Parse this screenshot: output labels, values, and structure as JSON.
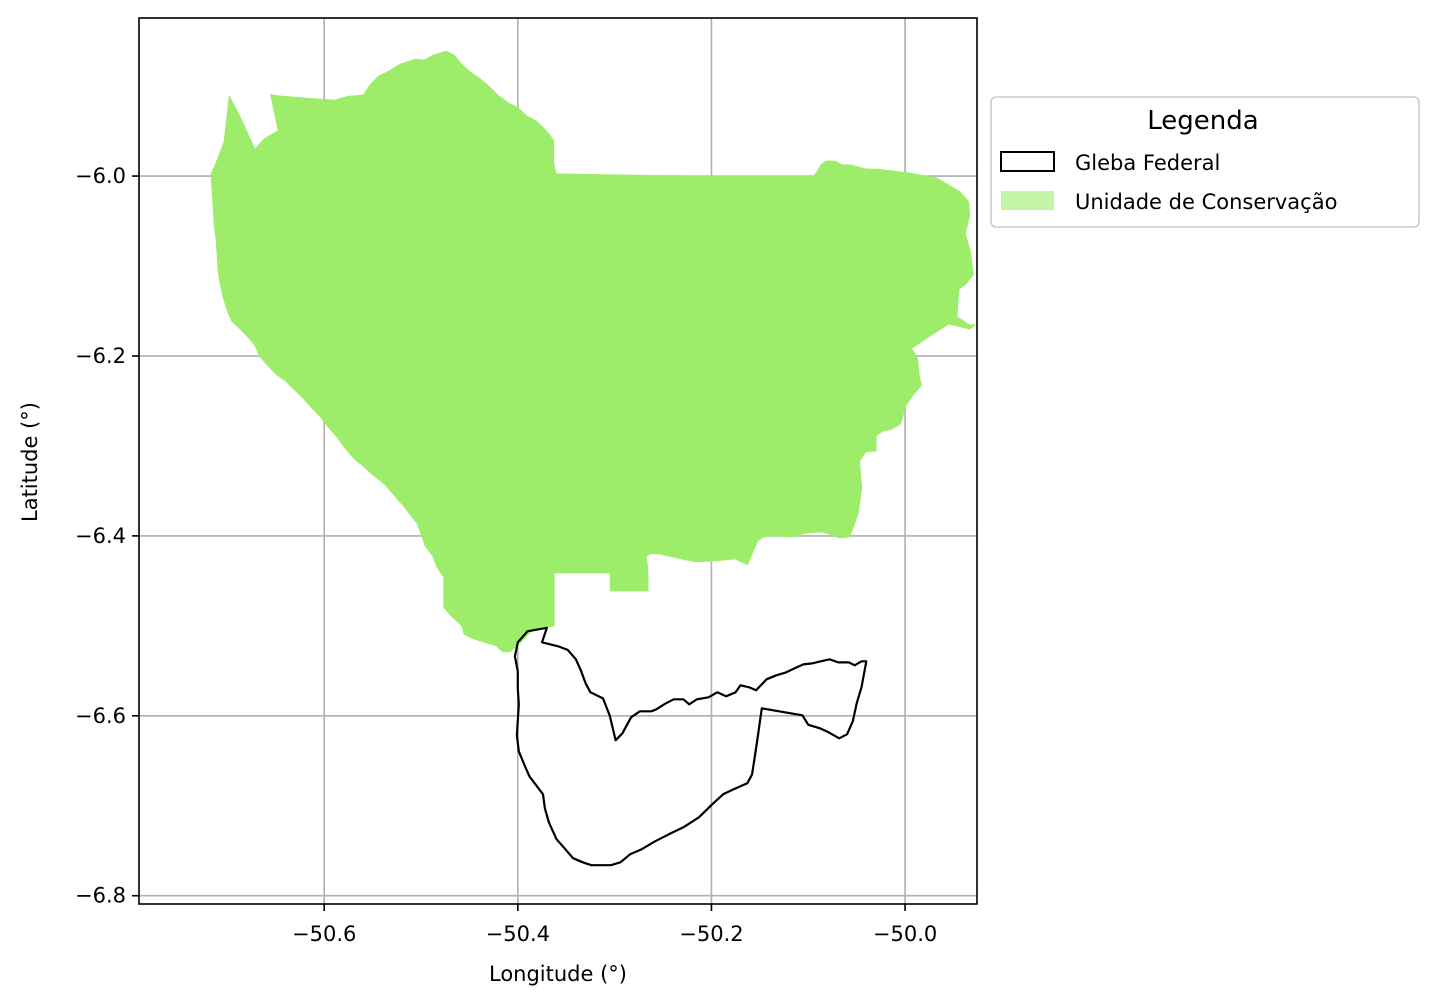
{
  "chart_data": {
    "type": "map",
    "xlabel": "Longitude (°)",
    "ylabel": "Latitude (°)",
    "xlim": [
      -50.7913,
      -49.9257
    ],
    "ylim": [
      -6.8092,
      -5.8243
    ],
    "x_ticks": [
      -50.6,
      -50.4,
      -50.2,
      -50.0
    ],
    "x_tick_labels": [
      "−50.6",
      "−50.4",
      "−50.2",
      "−50.0"
    ],
    "y_ticks": [
      -6.0,
      -6.2,
      -6.4,
      -6.6,
      -6.8
    ],
    "y_tick_labels": [
      "−6.0",
      "−6.2",
      "−6.4",
      "−6.6",
      "−6.8"
    ],
    "grid": true,
    "legend": {
      "title": "Legenda",
      "placement": "outside-right-top",
      "entries": [
        {
          "label": "Gleba Federal",
          "style": "outline",
          "color": "#000000"
        },
        {
          "label": "Unidade de Conservação",
          "style": "fill",
          "color": "#9ded6a"
        }
      ]
    },
    "layers": [
      {
        "name": "Unidade de Conservação",
        "fill": "#9ded6a",
        "polygon": [
          [
            -50.7173,
            -5.9975
          ],
          [
            -50.7128,
            -5.9872
          ],
          [
            -50.7038,
            -5.9617
          ],
          [
            -50.6983,
            -5.9095
          ],
          [
            -50.6874,
            -5.9317
          ],
          [
            -50.6714,
            -5.9694
          ],
          [
            -50.6624,
            -5.9584
          ],
          [
            -50.648,
            -5.9494
          ],
          [
            -50.656,
            -5.9084
          ],
          [
            -50.647,
            -5.9105
          ],
          [
            -50.6196,
            -5.9128
          ],
          [
            -50.5891,
            -5.915
          ],
          [
            -50.5755,
            -5.9109
          ],
          [
            -50.5597,
            -5.9095
          ],
          [
            -50.5531,
            -5.8984
          ],
          [
            -50.5441,
            -5.8884
          ],
          [
            -50.5351,
            -5.8839
          ],
          [
            -50.5216,
            -5.8751
          ],
          [
            -50.5061,
            -5.8695
          ],
          [
            -50.497,
            -5.8706
          ],
          [
            -50.4877,
            -5.8651
          ],
          [
            -50.474,
            -5.8606
          ],
          [
            -50.4656,
            -5.865
          ],
          [
            -50.458,
            -5.875
          ],
          [
            -50.449,
            -5.8839
          ],
          [
            -50.4399,
            -5.8906
          ],
          [
            -50.4309,
            -5.8983
          ],
          [
            -50.4194,
            -5.9105
          ],
          [
            -50.4094,
            -5.9183
          ],
          [
            -50.3994,
            -5.9239
          ],
          [
            -50.3904,
            -5.9328
          ],
          [
            -50.3809,
            -5.9384
          ],
          [
            -50.375,
            -5.9439
          ],
          [
            -50.3675,
            -5.9528
          ],
          [
            -50.3625,
            -5.9606
          ],
          [
            -50.3625,
            -5.9861
          ],
          [
            -50.36,
            -5.9972
          ],
          [
            -50.23,
            -5.9994
          ],
          [
            -50.095,
            -5.9994
          ],
          [
            -50.092,
            -5.996
          ],
          [
            -50.087,
            -5.9872
          ],
          [
            -50.082,
            -5.9828
          ],
          [
            -50.072,
            -5.9828
          ],
          [
            -50.065,
            -5.9872
          ],
          [
            -50.056,
            -5.9872
          ],
          [
            -50.04,
            -5.9917
          ],
          [
            -50.029,
            -5.9917
          ],
          [
            -49.996,
            -5.9961
          ],
          [
            -49.967,
            -6.0017
          ],
          [
            -49.943,
            -6.0172
          ],
          [
            -49.934,
            -6.0283
          ],
          [
            -49.9326,
            -6.0439
          ],
          [
            -49.9374,
            -6.0639
          ],
          [
            -49.932,
            -6.0839
          ],
          [
            -49.929,
            -6.1095
          ],
          [
            -49.937,
            -6.1206
          ],
          [
            -49.944,
            -6.1261
          ],
          [
            -49.946,
            -6.1561
          ],
          [
            -49.9333,
            -6.165
          ],
          [
            -49.9262,
            -6.165
          ],
          [
            -49.933,
            -6.1706
          ],
          [
            -49.9548,
            -6.165
          ],
          [
            -49.9742,
            -6.1783
          ],
          [
            -49.9926,
            -6.1917
          ],
          [
            -49.9866,
            -6.2028
          ],
          [
            -49.985,
            -6.2217
          ],
          [
            -49.9826,
            -6.2328
          ],
          [
            -49.9915,
            -6.2439
          ],
          [
            -49.9985,
            -6.255
          ],
          [
            -50.0044,
            -6.2761
          ],
          [
            -50.0134,
            -6.2817
          ],
          [
            -50.0224,
            -6.2839
          ],
          [
            -50.0294,
            -6.2889
          ],
          [
            -50.0294,
            -6.3061
          ],
          [
            -50.0404,
            -6.3072
          ],
          [
            -50.0464,
            -6.3172
          ],
          [
            -50.0444,
            -6.3472
          ],
          [
            -50.048,
            -6.375
          ],
          [
            -50.0534,
            -6.3917
          ],
          [
            -50.0574,
            -6.4017
          ],
          [
            -50.0674,
            -6.4028
          ],
          [
            -50.085,
            -6.3961
          ],
          [
            -50.1019,
            -6.3972
          ],
          [
            -50.116,
            -6.4017
          ],
          [
            -50.1337,
            -6.4005
          ],
          [
            -50.146,
            -6.4017
          ],
          [
            -50.152,
            -6.4061
          ],
          [
            -50.1627,
            -6.4328
          ],
          [
            -50.176,
            -6.4261
          ],
          [
            -50.195,
            -6.4283
          ],
          [
            -50.215,
            -6.4294
          ],
          [
            -50.226,
            -6.4272
          ],
          [
            -50.245,
            -6.4228
          ],
          [
            -50.254,
            -6.4205
          ],
          [
            -50.263,
            -6.4205
          ],
          [
            -50.267,
            -6.4228
          ],
          [
            -50.265,
            -6.4394
          ],
          [
            -50.265,
            -6.4617
          ],
          [
            -50.305,
            -6.4617
          ],
          [
            -50.305,
            -6.4417
          ],
          [
            -50.362,
            -6.4417
          ],
          [
            -50.362,
            -6.5006
          ],
          [
            -50.385,
            -6.505
          ],
          [
            -50.397,
            -6.5194
          ],
          [
            -50.408,
            -6.5294
          ],
          [
            -50.416,
            -6.5294
          ],
          [
            -50.422,
            -6.5228
          ],
          [
            -50.446,
            -6.515
          ],
          [
            -50.456,
            -6.5095
          ],
          [
            -50.458,
            -6.5006
          ],
          [
            -50.47,
            -6.4884
          ],
          [
            -50.477,
            -6.4794
          ],
          [
            -50.477,
            -6.4461
          ],
          [
            -50.484,
            -6.435
          ],
          [
            -50.488,
            -6.4228
          ],
          [
            -50.496,
            -6.4117
          ],
          [
            -50.5,
            -6.3994
          ],
          [
            -50.504,
            -6.3872
          ],
          [
            -50.511,
            -6.3772
          ],
          [
            -50.52,
            -6.365
          ],
          [
            -50.529,
            -6.3539
          ],
          [
            -50.538,
            -6.3428
          ],
          [
            -50.551,
            -6.3317
          ],
          [
            -50.56,
            -6.3228
          ],
          [
            -50.569,
            -6.315
          ],
          [
            -50.578,
            -6.3039
          ],
          [
            -50.587,
            -6.2906
          ],
          [
            -50.596,
            -6.2795
          ],
          [
            -50.605,
            -6.2672
          ],
          [
            -50.614,
            -6.2572
          ],
          [
            -50.623,
            -6.2461
          ],
          [
            -50.632,
            -6.2372
          ],
          [
            -50.64,
            -6.2283
          ],
          [
            -50.649,
            -6.2217
          ],
          [
            -50.658,
            -6.2117
          ],
          [
            -50.667,
            -6.2006
          ],
          [
            -50.672,
            -6.1883
          ],
          [
            -50.68,
            -6.1783
          ],
          [
            -50.688,
            -6.1695
          ],
          [
            -50.696,
            -6.1617
          ],
          [
            -50.701,
            -6.1483
          ],
          [
            -50.705,
            -6.1339
          ],
          [
            -50.708,
            -6.1195
          ],
          [
            -50.71,
            -6.105
          ],
          [
            -50.711,
            -6.0883
          ],
          [
            -50.712,
            -6.0717
          ],
          [
            -50.714,
            -6.055
          ],
          [
            -50.715,
            -6.0383
          ],
          [
            -50.716,
            -6.0217
          ],
          [
            -50.7173,
            -5.9975
          ]
        ]
      },
      {
        "name": "Gleba Federal",
        "stroke": "#000000",
        "polygon": [
          [
            -50.37,
            -6.5022
          ],
          [
            -50.375,
            -6.5183
          ],
          [
            -50.358,
            -6.5228
          ],
          [
            -50.3485,
            -6.5267
          ],
          [
            -50.34,
            -6.5372
          ],
          [
            -50.335,
            -6.5494
          ],
          [
            -50.33,
            -6.5639
          ],
          [
            -50.325,
            -6.5739
          ],
          [
            -50.312,
            -6.5806
          ],
          [
            -50.305,
            -6.6
          ],
          [
            -50.299,
            -6.6272
          ],
          [
            -50.292,
            -6.6194
          ],
          [
            -50.283,
            -6.6017
          ],
          [
            -50.274,
            -6.595
          ],
          [
            -50.262,
            -6.595
          ],
          [
            -50.257,
            -6.5928
          ],
          [
            -50.247,
            -6.5861
          ],
          [
            -50.239,
            -6.5817
          ],
          [
            -50.229,
            -6.5817
          ],
          [
            -50.223,
            -6.5872
          ],
          [
            -50.215,
            -6.5817
          ],
          [
            -50.203,
            -6.5794
          ],
          [
            -50.194,
            -6.5739
          ],
          [
            -50.185,
            -6.5783
          ],
          [
            -50.175,
            -6.5739
          ],
          [
            -50.17,
            -6.5661
          ],
          [
            -50.161,
            -6.5683
          ],
          [
            -50.154,
            -6.5717
          ],
          [
            -50.143,
            -6.5594
          ],
          [
            -50.133,
            -6.555
          ],
          [
            -50.123,
            -6.5517
          ],
          [
            -50.114,
            -6.5472
          ],
          [
            -50.105,
            -6.5428
          ],
          [
            -50.096,
            -6.5417
          ],
          [
            -50.087,
            -6.5394
          ],
          [
            -50.078,
            -6.5372
          ],
          [
            -50.069,
            -6.5406
          ],
          [
            -50.058,
            -6.5406
          ],
          [
            -50.052,
            -6.5439
          ],
          [
            -50.045,
            -6.5394
          ],
          [
            -50.04,
            -6.5394
          ],
          [
            -50.045,
            -6.5683
          ],
          [
            -50.05,
            -6.5861
          ],
          [
            -50.054,
            -6.6061
          ],
          [
            -50.06,
            -6.6206
          ],
          [
            -50.068,
            -6.625
          ],
          [
            -50.079,
            -6.6183
          ],
          [
            -50.088,
            -6.6139
          ],
          [
            -50.1,
            -6.61
          ],
          [
            -50.106,
            -6.5994
          ],
          [
            -50.148,
            -6.5917
          ],
          [
            -50.153,
            -6.63
          ],
          [
            -50.158,
            -6.665
          ],
          [
            -50.163,
            -6.675
          ],
          [
            -50.177,
            -6.6817
          ],
          [
            -50.188,
            -6.6872
          ],
          [
            -50.199,
            -6.6983
          ],
          [
            -50.213,
            -6.7128
          ],
          [
            -50.229,
            -6.7239
          ],
          [
            -50.244,
            -6.7317
          ],
          [
            -50.258,
            -6.7394
          ],
          [
            -50.272,
            -6.7483
          ],
          [
            -50.284,
            -6.7539
          ],
          [
            -50.294,
            -6.7628
          ],
          [
            -50.304,
            -6.7661
          ],
          [
            -50.314,
            -6.7661
          ],
          [
            -50.324,
            -6.7661
          ],
          [
            -50.333,
            -6.7628
          ],
          [
            -50.343,
            -6.7583
          ],
          [
            -50.351,
            -6.7483
          ],
          [
            -50.36,
            -6.7372
          ],
          [
            -50.368,
            -6.7183
          ],
          [
            -50.372,
            -6.7028
          ],
          [
            -50.374,
            -6.6872
          ],
          [
            -50.381,
            -6.6772
          ],
          [
            -50.388,
            -6.6672
          ],
          [
            -50.393,
            -6.655
          ],
          [
            -50.399,
            -6.6394
          ],
          [
            -50.401,
            -6.6217
          ],
          [
            -50.4,
            -6.605
          ],
          [
            -50.399,
            -6.5872
          ],
          [
            -50.4,
            -6.5694
          ],
          [
            -50.4,
            -6.5506
          ],
          [
            -50.403,
            -6.5339
          ],
          [
            -50.4,
            -6.5183
          ],
          [
            -50.39,
            -6.5061
          ],
          [
            -50.37,
            -6.5022
          ]
        ]
      }
    ]
  }
}
